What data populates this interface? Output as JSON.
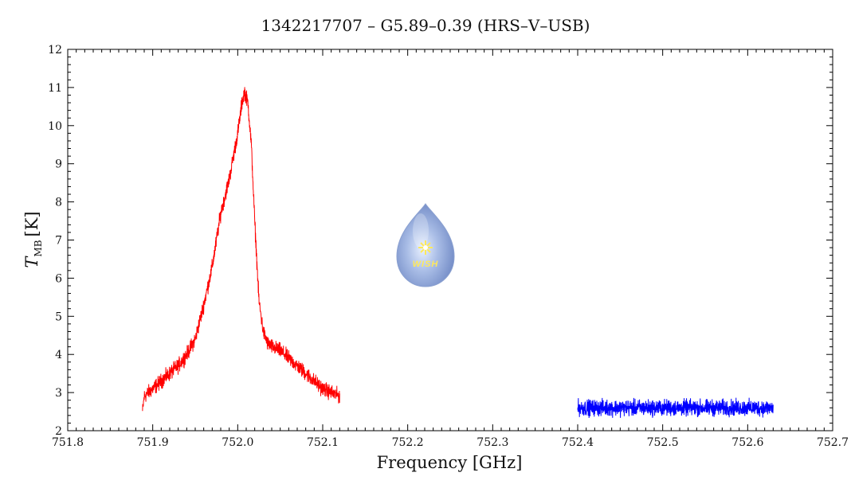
{
  "chart_data": {
    "type": "line",
    "title": "1342217707 – G5.89–0.39 (HRS–V–USB)",
    "xlabel": "Frequency [GHz]",
    "ylabel_main": "T",
    "ylabel_sub": "MB",
    "ylabel_unit": "[K]",
    "xlim": [
      751.8,
      752.7
    ],
    "ylim": [
      2,
      12
    ],
    "x_ticks": [
      "751.8",
      "751.9",
      "752.0",
      "752.1",
      "752.2",
      "752.3",
      "752.4",
      "752.5",
      "752.6",
      "752.7"
    ],
    "y_ticks": [
      "2",
      "3",
      "4",
      "5",
      "6",
      "7",
      "8",
      "9",
      "10",
      "11",
      "12"
    ],
    "grid": false,
    "series": [
      {
        "color": "#ff0000",
        "noise": 0.12,
        "x": [
          751.888,
          751.89,
          751.9,
          751.91,
          751.92,
          751.93,
          751.94,
          751.95,
          751.96,
          751.97,
          751.98,
          751.99,
          752.0,
          752.005,
          752.008,
          752.012,
          752.016,
          752.02,
          752.025,
          752.03,
          752.035,
          752.04,
          752.05,
          752.06,
          752.07,
          752.08,
          752.09,
          752.1,
          752.11,
          752.12
        ],
        "y": [
          2.5,
          2.9,
          3.1,
          3.3,
          3.5,
          3.7,
          4.0,
          4.4,
          5.3,
          6.3,
          7.7,
          8.6,
          9.8,
          10.6,
          10.9,
          10.6,
          9.5,
          7.5,
          5.4,
          4.6,
          4.3,
          4.2,
          4.1,
          3.9,
          3.7,
          3.5,
          3.3,
          3.1,
          3.0,
          2.9
        ]
      },
      {
        "color": "#0000ff",
        "noise": 0.13,
        "x": [
          752.4,
          752.63
        ],
        "y": [
          2.6,
          2.6
        ]
      }
    ]
  },
  "logo": {
    "text": "WISH"
  }
}
